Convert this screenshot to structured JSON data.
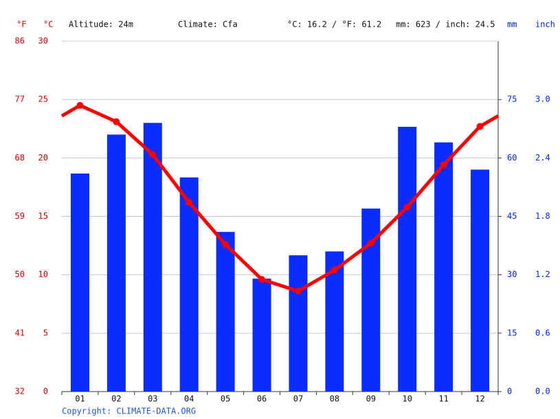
{
  "chart_data": {
    "type": "climate",
    "header": {
      "altitude": "Altitude: 24m",
      "climate": "Climate: Cfa",
      "temp_summary": "°C: 16.2 / °F: 61.2",
      "precip_summary": "mm: 623 / inch: 24.5"
    },
    "units": {
      "f": "°F",
      "c": "°C",
      "mm": "mm",
      "inch": "inch"
    },
    "categories": [
      "01",
      "02",
      "03",
      "04",
      "05",
      "06",
      "07",
      "08",
      "09",
      "10",
      "11",
      "12"
    ],
    "series": [
      {
        "name": "Temperature",
        "color": "#ff0000",
        "type": "line",
        "values": [
          24.5,
          23.1,
          20.3,
          16.2,
          12.6,
          9.6,
          8.6,
          10.4,
          12.7,
          15.8,
          19.4,
          22.7
        ]
      },
      {
        "name": "Precipitation",
        "color": "#0a2cff",
        "type": "bar",
        "axis": "y2",
        "values": [
          56,
          66,
          69,
          55,
          41,
          29,
          35,
          36,
          47,
          68,
          64,
          57
        ]
      }
    ],
    "ylim": [
      0,
      30
    ],
    "yticks": [
      0,
      5,
      10,
      15,
      20,
      25,
      30
    ],
    "yticks_f": [
      32,
      41,
      50,
      59,
      68,
      77,
      86
    ],
    "y2lim": [
      0,
      90
    ],
    "y2ticks": [
      0,
      15,
      30,
      45,
      60,
      75
    ],
    "y2ticks_inch": [
      "0.0",
      "0.6",
      "1.2",
      "1.8",
      "2.4",
      "3.0"
    ],
    "grid": true,
    "copyright": "Copyright: CLIMATE-DATA.ORG"
  }
}
